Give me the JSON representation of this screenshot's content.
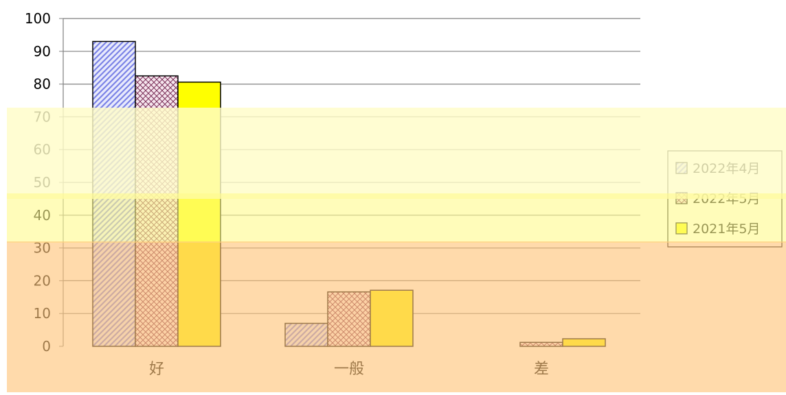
{
  "chart_data": {
    "type": "bar",
    "categories": [
      "好",
      "一般",
      "差"
    ],
    "series": [
      {
        "name": "2022年4月",
        "values": [
          93,
          7,
          0
        ]
      },
      {
        "name": "2022年5月",
        "values": [
          82.5,
          16.6,
          1.2
        ]
      },
      {
        "name": "2021年5月",
        "values": [
          80.6,
          17.1,
          2.3
        ]
      }
    ],
    "y_ticks": [
      "0",
      "10",
      "20",
      "30",
      "40",
      "50",
      "60",
      "70",
      "80",
      "90",
      "100"
    ],
    "ylim": [
      0,
      100
    ],
    "grid": true,
    "legend_position": "right",
    "colors": {
      "series_fill": [
        "#c8ccf4",
        "#f4d6e6",
        "#ffff00"
      ],
      "series_stroke": [
        "#8088e8",
        "#804060",
        "#000000"
      ],
      "axis_text": "#000000",
      "gridline": "#808080",
      "overlay_light": "#fffdcc",
      "overlay_mid": "#ffff99",
      "overlay_orange": "#ffcc88"
    }
  }
}
